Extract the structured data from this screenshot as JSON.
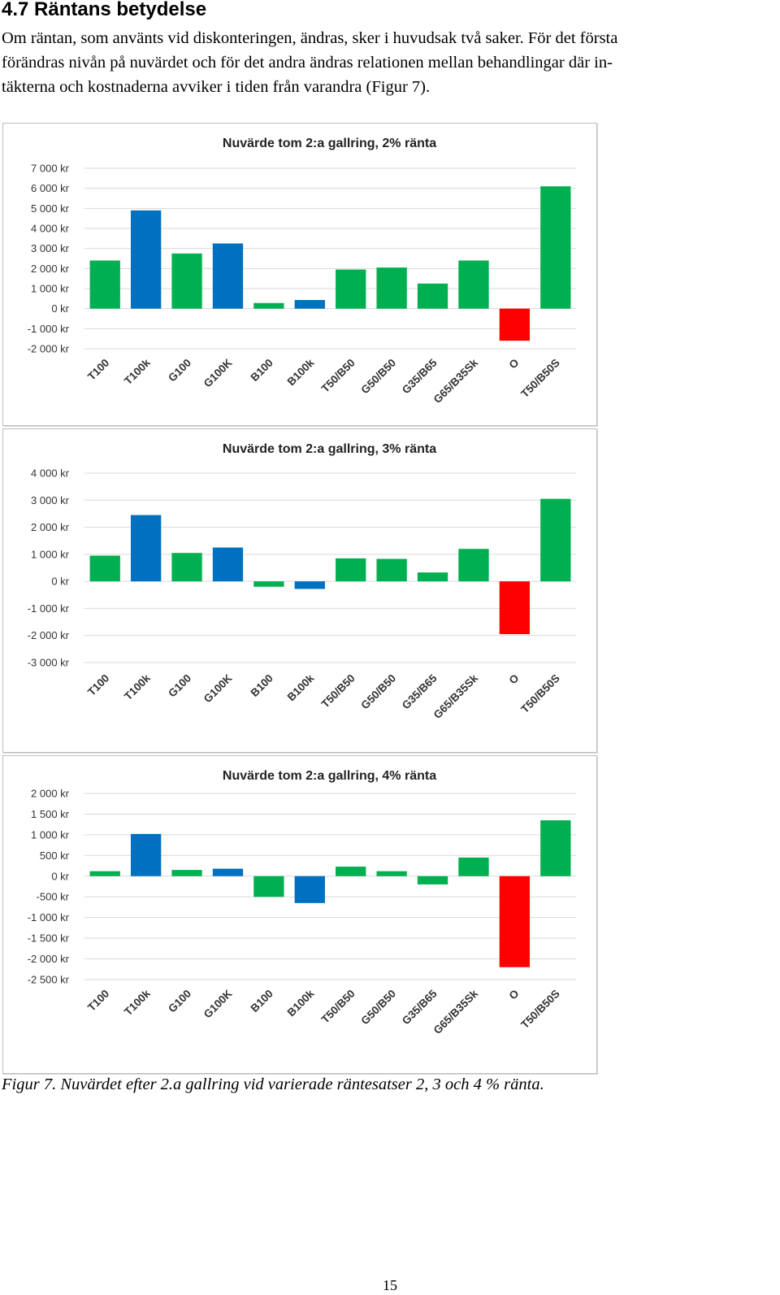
{
  "heading": "4.7 Räntans betydelse",
  "paragraph": {
    "line1": "Om räntan, som använts vid diskonteringen, ändras, sker i huvudsak två saker. För det första",
    "line2": "förändras nivån på nuvärdet och för det andra ändras relationen mellan behandlingar där in-",
    "line3": "täkterna och kostnaderna avviker i tiden från varandra (Figur 7)."
  },
  "caption": "Figur 7. Nuvärdet efter 2.a gallring vid varierade räntesatser 2, 3 och 4 % ränta.",
  "page_number": "15",
  "colors": {
    "green": "#00b050",
    "blue": "#0070c0",
    "red": "#ff0000",
    "grid": "#d9d9d9"
  },
  "chart_data": [
    {
      "type": "bar",
      "title": "Nuvärde tom 2:a gallring, 2% ränta",
      "categories": [
        "T100",
        "T100k",
        "G100",
        "G100K",
        "B100",
        "B100k",
        "T50/B50",
        "G50/B50",
        "G35/B65",
        "G65/B35Sk",
        "O",
        "T50/B50S"
      ],
      "values": [
        2400,
        4900,
        2750,
        3250,
        280,
        430,
        1950,
        2050,
        1250,
        2400,
        -1600,
        6100
      ],
      "bar_colors": [
        "green",
        "blue",
        "green",
        "blue",
        "green",
        "blue",
        "green",
        "green",
        "green",
        "green",
        "red",
        "green"
      ],
      "ylim": [
        -2000,
        7000
      ],
      "yticks": [
        7000,
        6000,
        5000,
        4000,
        3000,
        2000,
        1000,
        0,
        -1000,
        -2000
      ],
      "ytick_labels": [
        "7 000 kr",
        "6 000 kr",
        "5 000 kr",
        "4 000 kr",
        "3 000 kr",
        "2 000 kr",
        "1 000 kr",
        "0 kr",
        "-1 000 kr",
        "-2 000 kr"
      ],
      "grid": true
    },
    {
      "type": "bar",
      "title": "Nuvärde tom 2:a gallring, 3% ränta",
      "categories": [
        "T100",
        "T100k",
        "G100",
        "G100K",
        "B100",
        "B100k",
        "T50/B50",
        "G50/B50",
        "G35/B65",
        "G65/B35Sk",
        "O",
        "T50/B50S"
      ],
      "values": [
        950,
        2450,
        1050,
        1250,
        -200,
        -280,
        850,
        830,
        330,
        1200,
        -1950,
        3050
      ],
      "bar_colors": [
        "green",
        "blue",
        "green",
        "blue",
        "green",
        "blue",
        "green",
        "green",
        "green",
        "green",
        "red",
        "green"
      ],
      "ylim": [
        -3000,
        4000
      ],
      "yticks": [
        4000,
        3000,
        2000,
        1000,
        0,
        -1000,
        -2000,
        -3000
      ],
      "ytick_labels": [
        "4 000 kr",
        "3 000 kr",
        "2 000 kr",
        "1 000 kr",
        "0 kr",
        "-1 000 kr",
        "-2 000 kr",
        "-3 000 kr"
      ],
      "grid": true
    },
    {
      "type": "bar",
      "title": "Nuvärde tom 2:a gallring, 4% ränta",
      "categories": [
        "T100",
        "T100k",
        "G100",
        "G100K",
        "B100",
        "B100k",
        "T50/B50",
        "G50/B50",
        "G35/B65",
        "G65/B35Sk",
        "O",
        "T50/B50S"
      ],
      "values": [
        120,
        1020,
        150,
        180,
        -500,
        -650,
        230,
        120,
        -200,
        450,
        -2200,
        1350
      ],
      "bar_colors": [
        "green",
        "blue",
        "green",
        "blue",
        "green",
        "blue",
        "green",
        "green",
        "green",
        "green",
        "red",
        "green"
      ],
      "ylim": [
        -2500,
        2000
      ],
      "yticks": [
        2000,
        1500,
        1000,
        500,
        0,
        -500,
        -1000,
        -1500,
        -2000,
        -2500
      ],
      "ytick_labels": [
        "2 000 kr",
        "1 500 kr",
        "1 000 kr",
        "500 kr",
        "0 kr",
        "-500 kr",
        "-1 000 kr",
        "-1 500 kr",
        "-2 000 kr",
        "-2 500 kr"
      ],
      "grid": true
    }
  ]
}
